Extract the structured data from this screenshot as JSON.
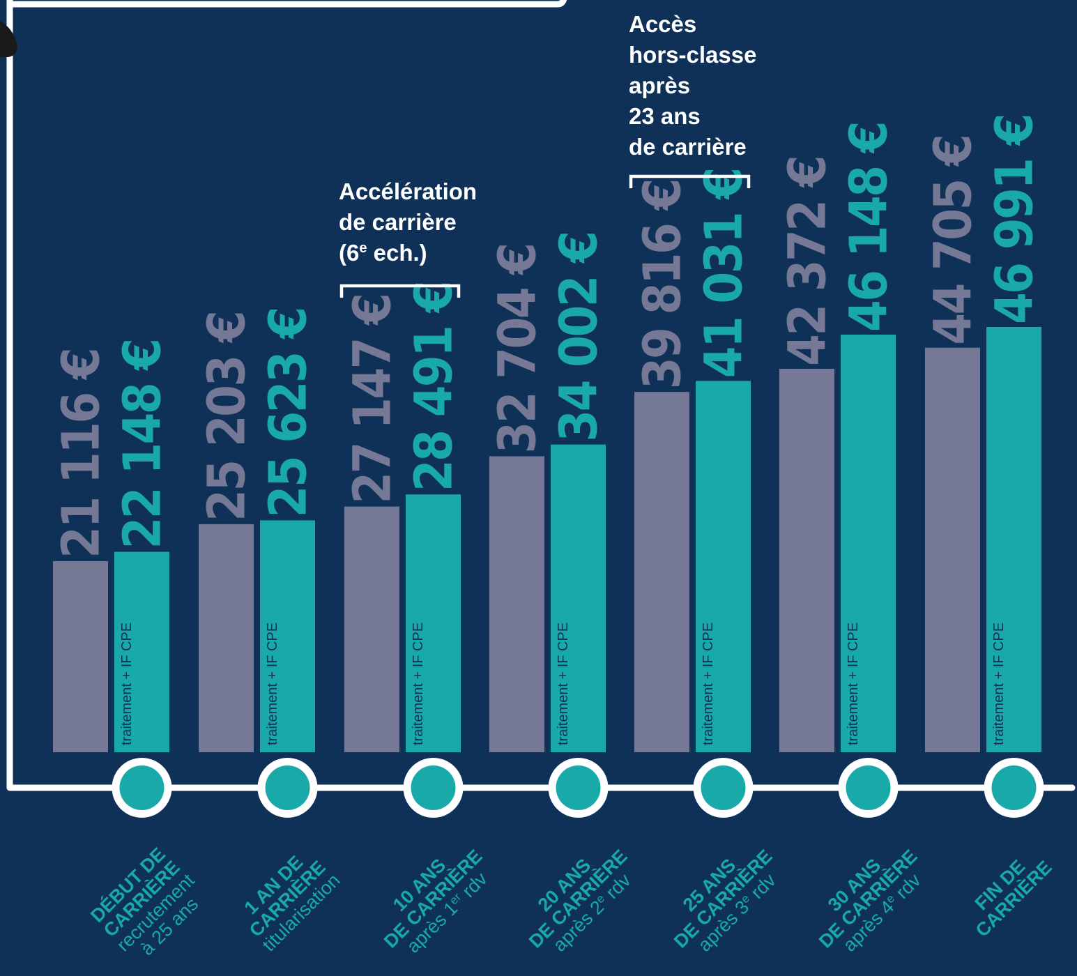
{
  "chart_data": {
    "type": "bar",
    "title": "",
    "xlabel": "",
    "ylabel": "",
    "ylim": [
      0,
      56000
    ],
    "grid": false,
    "legend": "none",
    "in_bar_label": "traitement + IF CPE",
    "series": [
      {
        "name": "",
        "color": "#767995",
        "values": [
          21116,
          25203,
          27147,
          32704,
          39816,
          42372,
          44705
        ],
        "labels": [
          "21 116 €",
          "25 203 €",
          "27 147 €",
          "32 704 €",
          "39 816 €",
          "42 372 €",
          "44 705 €"
        ]
      },
      {
        "name": "traitement + IF CPE",
        "color": "#1aa9a9",
        "values": [
          22148,
          25623,
          28491,
          34002,
          41031,
          46148,
          46991
        ],
        "labels": [
          "22 148 €",
          "25 623 €",
          "28 491 €",
          "34 002 €",
          "41 031 €",
          "46 148 €",
          "46 991 €"
        ]
      }
    ],
    "categories": [
      {
        "line1": "DÉBUT DE",
        "line2": "CARRIÈRE",
        "line3": "recrutement",
        "line4": "à 25 ans",
        "sup": ""
      },
      {
        "line1": "1 AN DE",
        "line2": "CARRIÈRE",
        "line3": "titularisation",
        "line4": "",
        "sup": ""
      },
      {
        "line1": "10 ANS",
        "line2": "DE CARRIÈRE",
        "line3": "après 1",
        "line4": "",
        "sup": "er",
        "after": " rdv"
      },
      {
        "line1": "20 ANS",
        "line2": "DE CARRIÈRE",
        "line3": "après 2",
        "line4": "",
        "sup": "e",
        "after": " rdv"
      },
      {
        "line1": "25 ANS",
        "line2": "DE CARRIÈRE",
        "line3": "après 3",
        "line4": "",
        "sup": "e",
        "after": " rdv"
      },
      {
        "line1": "30 ANS",
        "line2": "DE CARRIÈRE",
        "line3": "après 4",
        "line4": "",
        "sup": "e",
        "after": " rdv"
      },
      {
        "line1": "FIN DE",
        "line2": "CARRIÈRE",
        "line3": "",
        "line4": "",
        "sup": ""
      }
    ],
    "annotations": [
      {
        "id": "acceleration",
        "lines": [
          "Accélération",
          "de carrière"
        ],
        "line3_pre": "(6",
        "line3_sup": "e",
        "line3_post": " ech.)",
        "category_index": 2
      },
      {
        "id": "hors-classe",
        "lines": [
          "Accès",
          "hors-classe",
          "après",
          "23 ans",
          "de carrière"
        ],
        "category_index": 4
      }
    ]
  }
}
